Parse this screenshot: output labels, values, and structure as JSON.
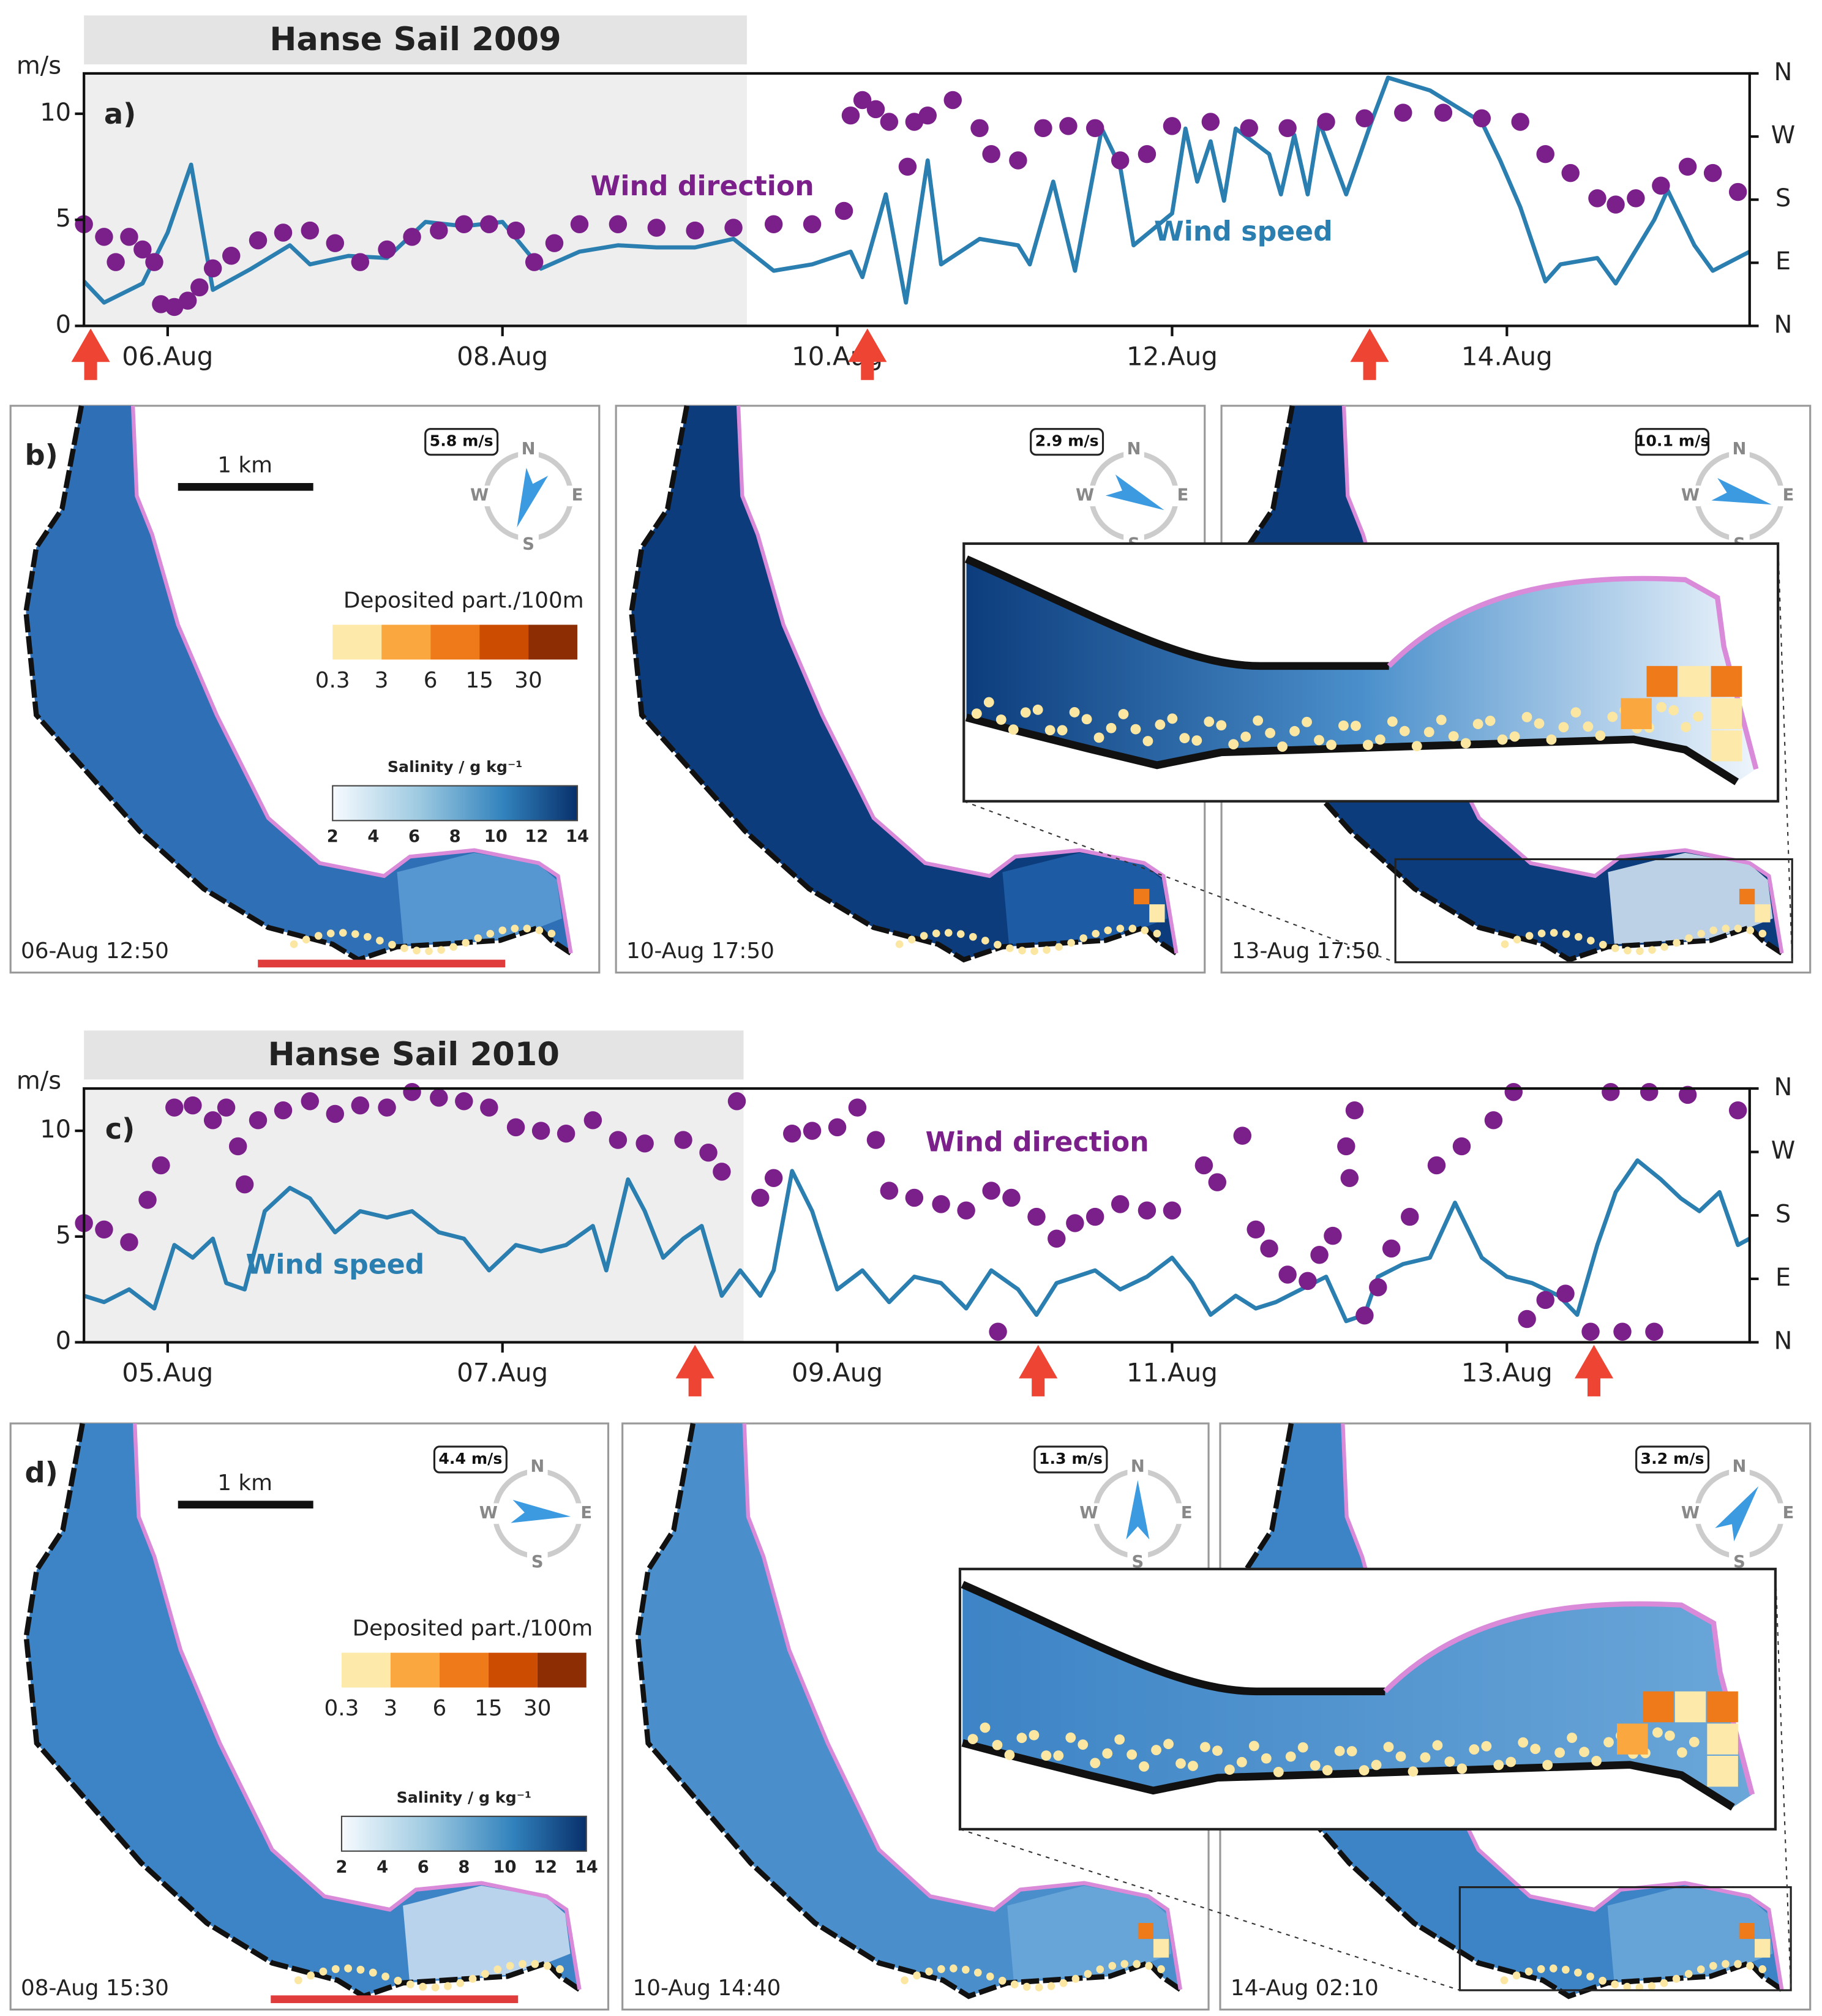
{
  "chart_data": [
    {
      "type": "line",
      "title": "Hanse Sail 2009",
      "panel_label": "a)",
      "ylabel": "m/s",
      "xlim": [
        5.5,
        15.45
      ],
      "xticks": [
        {
          "value": 6,
          "label": "06.Aug"
        },
        {
          "value": 8,
          "label": "08.Aug"
        },
        {
          "value": 10,
          "label": "10.Aug"
        },
        {
          "value": 12,
          "label": "12.Aug"
        },
        {
          "value": 14,
          "label": "14.Aug"
        }
      ],
      "ylim": [
        0,
        11.9
      ],
      "yticks": [
        0,
        5,
        10
      ],
      "y2lim": [
        0,
        360
      ],
      "y2ticks": [
        {
          "value": 0,
          "label": "N"
        },
        {
          "value": 90,
          "label": "E"
        },
        {
          "value": 180,
          "label": "S"
        },
        {
          "value": 270,
          "label": "W"
        },
        {
          "value": 360,
          "label": "N"
        }
      ],
      "highlight": [
        5.5,
        9.46
      ],
      "arrows": [
        5.54,
        10.18,
        13.18
      ],
      "series": [
        {
          "name": "Wind speed",
          "style": "line",
          "color": "#2a7fb0",
          "x": [
            5.5,
            5.62,
            5.85,
            6.0,
            6.14,
            6.27,
            6.5,
            6.73,
            6.85,
            7.08,
            7.31,
            7.54,
            7.77,
            8.0,
            8.23,
            8.46,
            8.69,
            8.92,
            9.15,
            9.38,
            9.62,
            9.85,
            10.08,
            10.15,
            10.29,
            10.41,
            10.54,
            10.62,
            10.85,
            11.08,
            11.15,
            11.29,
            11.42,
            11.58,
            11.69,
            11.77,
            12.0,
            12.08,
            12.15,
            12.23,
            12.31,
            12.38,
            12.58,
            12.65,
            12.73,
            12.81,
            12.88,
            13.04,
            13.19,
            13.29,
            13.54,
            13.85,
            13.96,
            14.08,
            14.23,
            14.32,
            14.54,
            14.65,
            14.88,
            14.96,
            15.12,
            15.23,
            15.45
          ],
          "values": [
            2.1,
            1.1,
            2.0,
            4.4,
            7.6,
            1.7,
            2.7,
            3.8,
            2.9,
            3.3,
            3.2,
            4.9,
            4.7,
            4.9,
            2.7,
            3.5,
            3.8,
            3.7,
            3.7,
            4.1,
            2.6,
            2.9,
            3.5,
            2.3,
            6.2,
            1.1,
            7.8,
            2.9,
            4.1,
            3.8,
            2.9,
            6.8,
            2.6,
            9.3,
            7.5,
            3.8,
            5.3,
            9.3,
            6.8,
            8.7,
            5.9,
            9.3,
            8.1,
            6.2,
            9.0,
            6.2,
            9.6,
            6.2,
            9.6,
            11.7,
            11.1,
            9.6,
            7.8,
            5.6,
            2.1,
            2.9,
            3.2,
            2.0,
            5.0,
            6.4,
            3.8,
            2.6,
            3.5
          ]
        },
        {
          "name": "Wind direction",
          "style": "dots",
          "color": "#7b1f8a",
          "axis": "y2",
          "x": [
            5.5,
            5.62,
            5.69,
            5.77,
            5.85,
            5.92,
            5.96,
            6.04,
            6.12,
            6.19,
            6.27,
            6.38,
            6.54,
            6.69,
            6.85,
            7.0,
            7.15,
            7.31,
            7.46,
            7.62,
            7.77,
            7.92,
            8.08,
            8.19,
            8.31,
            8.46,
            8.69,
            8.92,
            9.15,
            9.38,
            9.62,
            9.85,
            10.04,
            10.08,
            10.15,
            10.23,
            10.31,
            10.42,
            10.46,
            10.54,
            10.69,
            10.85,
            10.92,
            11.08,
            11.23,
            11.38,
            11.54,
            11.69,
            11.85,
            12.0,
            12.23,
            12.46,
            12.69,
            12.92,
            13.15,
            13.38,
            13.62,
            13.85,
            14.08,
            14.23,
            14.38,
            14.54,
            14.65,
            14.77,
            14.92,
            15.08,
            15.23,
            15.38
          ],
          "values": [
            145,
            127,
            91,
            127,
            109,
            91,
            31,
            27,
            36,
            55,
            82,
            100,
            122,
            133,
            136,
            118,
            91,
            109,
            127,
            136,
            145,
            145,
            136,
            91,
            118,
            145,
            145,
            140,
            136,
            140,
            145,
            145,
            164,
            300,
            322,
            309,
            291,
            227,
            291,
            300,
            322,
            282,
            245,
            236,
            282,
            285,
            282,
            236,
            245,
            285,
            291,
            282,
            282,
            291,
            296,
            304,
            304,
            296,
            291,
            245,
            218,
            182,
            173,
            182,
            200,
            227,
            218,
            191
          ]
        }
      ]
    },
    {
      "type": "line",
      "title": "Hanse Sail 2010",
      "panel_label": "c)",
      "ylabel": "m/s",
      "xlim": [
        4.5,
        14.45
      ],
      "xticks": [
        {
          "value": 5,
          "label": "05.Aug"
        },
        {
          "value": 7,
          "label": "07.Aug"
        },
        {
          "value": 9,
          "label": "09.Aug"
        },
        {
          "value": 11,
          "label": "11.Aug"
        },
        {
          "value": 13,
          "label": "13.Aug"
        }
      ],
      "ylim": [
        0,
        12
      ],
      "yticks": [
        0,
        5,
        10
      ],
      "y2lim": [
        0,
        360
      ],
      "y2ticks": [
        {
          "value": 0,
          "label": "N"
        },
        {
          "value": 90,
          "label": "E"
        },
        {
          "value": 180,
          "label": "S"
        },
        {
          "value": 270,
          "label": "W"
        },
        {
          "value": 360,
          "label": "N"
        }
      ],
      "highlight": [
        4.5,
        8.44
      ],
      "arrows": [
        8.15,
        10.2,
        13.52
      ],
      "series": [
        {
          "name": "Wind speed",
          "style": "line",
          "color": "#2a7fb0",
          "x": [
            4.5,
            4.62,
            4.77,
            4.92,
            5.04,
            5.15,
            5.27,
            5.35,
            5.46,
            5.58,
            5.73,
            5.85,
            6.0,
            6.15,
            6.31,
            6.46,
            6.62,
            6.77,
            6.92,
            7.08,
            7.23,
            7.38,
            7.54,
            7.62,
            7.75,
            7.85,
            7.96,
            8.08,
            8.19,
            8.31,
            8.42,
            8.54,
            8.62,
            8.73,
            8.85,
            9.0,
            9.15,
            9.31,
            9.46,
            9.62,
            9.77,
            9.92,
            10.08,
            10.19,
            10.31,
            10.54,
            10.69,
            10.85,
            11.0,
            11.12,
            11.23,
            11.38,
            11.5,
            11.62,
            11.77,
            11.92,
            12.04,
            12.15,
            12.23,
            12.38,
            12.54,
            12.69,
            12.85,
            13.0,
            13.15,
            13.31,
            13.42,
            13.54,
            13.65,
            13.78,
            13.92,
            14.04,
            14.15,
            14.27,
            14.38,
            14.45
          ],
          "values": [
            2.2,
            1.9,
            2.5,
            1.6,
            4.6,
            4.0,
            4.9,
            2.8,
            2.5,
            6.2,
            7.3,
            6.8,
            5.2,
            6.2,
            5.9,
            6.2,
            5.2,
            4.9,
            3.4,
            4.6,
            4.3,
            4.6,
            5.5,
            3.4,
            7.7,
            6.2,
            4.0,
            4.9,
            5.5,
            2.2,
            3.4,
            2.2,
            3.4,
            8.1,
            6.2,
            2.5,
            3.4,
            1.9,
            3.1,
            2.8,
            1.6,
            3.4,
            2.5,
            1.3,
            2.8,
            3.4,
            2.5,
            3.1,
            4.0,
            2.8,
            1.3,
            2.2,
            1.6,
            1.9,
            2.5,
            3.1,
            1.0,
            1.3,
            3.1,
            3.7,
            4.0,
            6.6,
            4.0,
            3.1,
            2.8,
            2.2,
            1.3,
            4.6,
            7.1,
            8.6,
            7.7,
            6.8,
            6.2,
            7.1,
            4.6,
            4.9
          ]
        },
        {
          "name": "Wind direction",
          "style": "dots",
          "color": "#7b1f8a",
          "axis": "y2",
          "x": [
            4.5,
            4.62,
            4.77,
            4.88,
            4.96,
            5.04,
            5.15,
            5.27,
            5.35,
            5.42,
            5.46,
            5.54,
            5.69,
            5.85,
            6.0,
            6.15,
            6.31,
            6.46,
            6.62,
            6.77,
            6.92,
            7.08,
            7.23,
            7.38,
            7.54,
            7.69,
            7.85,
            8.08,
            8.23,
            8.31,
            8.4,
            8.54,
            8.62,
            8.73,
            8.85,
            9.0,
            9.12,
            9.23,
            9.31,
            9.46,
            9.62,
            9.77,
            9.92,
            9.96,
            10.04,
            10.19,
            10.31,
            10.42,
            10.54,
            10.69,
            10.85,
            11.0,
            11.19,
            11.27,
            11.42,
            11.5,
            11.58,
            11.69,
            11.81,
            11.88,
            11.96,
            12.04,
            12.06,
            12.09,
            12.15,
            12.23,
            12.31,
            12.42,
            12.58,
            12.73,
            12.92,
            13.04,
            13.12,
            13.23,
            13.35,
            13.5,
            13.62,
            13.69,
            13.85,
            13.88,
            14.08,
            14.38
          ],
          "values": [
            169,
            160,
            142,
            202,
            251,
            333,
            336,
            315,
            333,
            278,
            224,
            315,
            329,
            342,
            324,
            336,
            333,
            355,
            347,
            342,
            333,
            305,
            300,
            296,
            315,
            287,
            282,
            287,
            269,
            242,
            342,
            205,
            233,
            296,
            300,
            305,
            333,
            287,
            215,
            205,
            196,
            187,
            215,
            15,
            205,
            178,
            147,
            169,
            178,
            196,
            187,
            187,
            251,
            227,
            293,
            160,
            133,
            96,
            87,
            124,
            151,
            278,
            233,
            329,
            38,
            78,
            133,
            178,
            251,
            278,
            315,
            355,
            33,
            60,
            69,
            15,
            355,
            15,
            355,
            15,
            351,
            329
          ]
        }
      ]
    }
  ],
  "maps": {
    "compass": [
      "N",
      "E",
      "S",
      "W"
    ],
    "scale": "1 km",
    "deposited": {
      "title": "Deposited part./100m",
      "ticks": [
        0.3,
        3,
        6,
        15,
        30
      ],
      "colors": [
        "#fde9a9",
        "#f9a73e",
        "#ef7a1a",
        "#cc4c02",
        "#8c2d04"
      ]
    },
    "salinity": {
      "title": "Salinity / g kg⁻¹",
      "ticks": [
        2,
        4,
        6,
        8,
        10,
        12,
        14
      ]
    },
    "rows": [
      {
        "label": "b)",
        "panels": [
          {
            "time": "06-Aug 12:50",
            "wind": "5.8 m/s",
            "arrow_deg": 200
          },
          {
            "time": "10-Aug 17:50",
            "wind": "2.9 m/s",
            "arrow_deg": 115
          },
          {
            "time": "13-Aug 17:50",
            "wind": "10.1 m/s",
            "arrow_deg": 105
          }
        ]
      },
      {
        "label": "d)",
        "panels": [
          {
            "time": "08-Aug 15:30",
            "wind": "4.4 m/s",
            "arrow_deg": 95
          },
          {
            "time": "10-Aug 14:40",
            "wind": "1.3 m/s",
            "arrow_deg": 0
          },
          {
            "time": "14-Aug 02:10",
            "wind": "3.2 m/s",
            "arrow_deg": 35
          }
        ]
      }
    ]
  }
}
